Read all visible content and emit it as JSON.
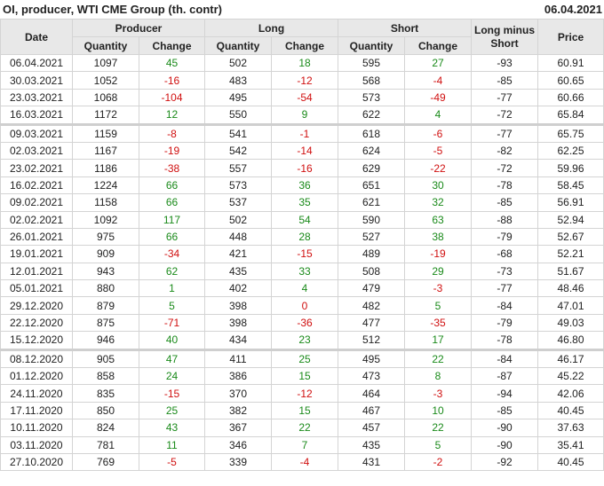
{
  "title": "OI, producer, WTI CME Group (th. contr)",
  "date": "06.04.2021",
  "headers": {
    "date": "Date",
    "producer": "Producer",
    "long": "Long",
    "short": "Short",
    "quantity": "Quantity",
    "change": "Change",
    "long_minus_short": "Long minus Short",
    "price": "Price"
  },
  "colors": {
    "positive": "#1a8a1a",
    "negative": "#d01010"
  },
  "rows": [
    [
      "06.04.2021",
      "1097",
      "45",
      "502",
      "18",
      "595",
      "27",
      "-93",
      "60.91"
    ],
    [
      "30.03.2021",
      "1052",
      "-16",
      "483",
      "-12",
      "568",
      "-4",
      "-85",
      "60.65"
    ],
    [
      "23.03.2021",
      "1068",
      "-104",
      "495",
      "-54",
      "573",
      "-49",
      "-77",
      "60.66"
    ],
    [
      "16.03.2021",
      "1172",
      "12",
      "550",
      "9",
      "622",
      "4",
      "-72",
      "65.84"
    ],
    [
      "09.03.2021",
      "1159",
      "-8",
      "541",
      "-1",
      "618",
      "-6",
      "-77",
      "65.75"
    ],
    [
      "02.03.2021",
      "1167",
      "-19",
      "542",
      "-14",
      "624",
      "-5",
      "-82",
      "62.25"
    ],
    [
      "23.02.2021",
      "1186",
      "-38",
      "557",
      "-16",
      "629",
      "-22",
      "-72",
      "59.96"
    ],
    [
      "16.02.2021",
      "1224",
      "66",
      "573",
      "36",
      "651",
      "30",
      "-78",
      "58.45"
    ],
    [
      "09.02.2021",
      "1158",
      "66",
      "537",
      "35",
      "621",
      "32",
      "-85",
      "56.91"
    ],
    [
      "02.02.2021",
      "1092",
      "117",
      "502",
      "54",
      "590",
      "63",
      "-88",
      "52.94"
    ],
    [
      "26.01.2021",
      "975",
      "66",
      "448",
      "28",
      "527",
      "38",
      "-79",
      "52.67"
    ],
    [
      "19.01.2021",
      "909",
      "-34",
      "421",
      "-15",
      "489",
      "-19",
      "-68",
      "52.21"
    ],
    [
      "12.01.2021",
      "943",
      "62",
      "435",
      "33",
      "508",
      "29",
      "-73",
      "51.67"
    ],
    [
      "05.01.2021",
      "880",
      "1",
      "402",
      "4",
      "479",
      "-3",
      "-77",
      "48.46"
    ],
    [
      "29.12.2020",
      "879",
      "5",
      "398",
      "0",
      "482",
      "5",
      "-84",
      "47.01"
    ],
    [
      "22.12.2020",
      "875",
      "-71",
      "398",
      "-36",
      "477",
      "-35",
      "-79",
      "49.03"
    ],
    [
      "15.12.2020",
      "946",
      "40",
      "434",
      "23",
      "512",
      "17",
      "-78",
      "46.80"
    ],
    [
      "08.12.2020",
      "905",
      "47",
      "411",
      "25",
      "495",
      "22",
      "-84",
      "46.17"
    ],
    [
      "01.12.2020",
      "858",
      "24",
      "386",
      "15",
      "473",
      "8",
      "-87",
      "45.22"
    ],
    [
      "24.11.2020",
      "835",
      "-15",
      "370",
      "-12",
      "464",
      "-3",
      "-94",
      "42.06"
    ],
    [
      "17.11.2020",
      "850",
      "25",
      "382",
      "15",
      "467",
      "10",
      "-85",
      "40.45"
    ],
    [
      "10.11.2020",
      "824",
      "43",
      "367",
      "22",
      "457",
      "22",
      "-90",
      "37.63"
    ],
    [
      "03.11.2020",
      "781",
      "11",
      "346",
      "7",
      "435",
      "5",
      "-90",
      "35.41"
    ],
    [
      "27.10.2020",
      "769",
      "-5",
      "339",
      "-4",
      "431",
      "-2",
      "-92",
      "40.45"
    ]
  ]
}
